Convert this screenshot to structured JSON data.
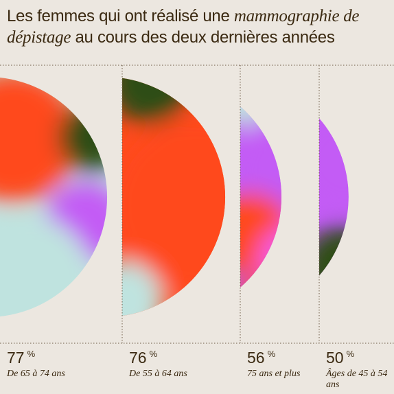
{
  "chart_data": {
    "type": "segment",
    "title": [
      "Les femmes qui ont réalisé une",
      "mammographie de dépistage",
      "au cours des deux dernières années"
    ],
    "categories": [
      "De 65 à 74 ans",
      "De 55 à 64 ans",
      "75 ans et plus",
      "Âges de 45 à 54 ans"
    ],
    "values": [
      77,
      76,
      56,
      50
    ],
    "unit": "%"
  }
}
